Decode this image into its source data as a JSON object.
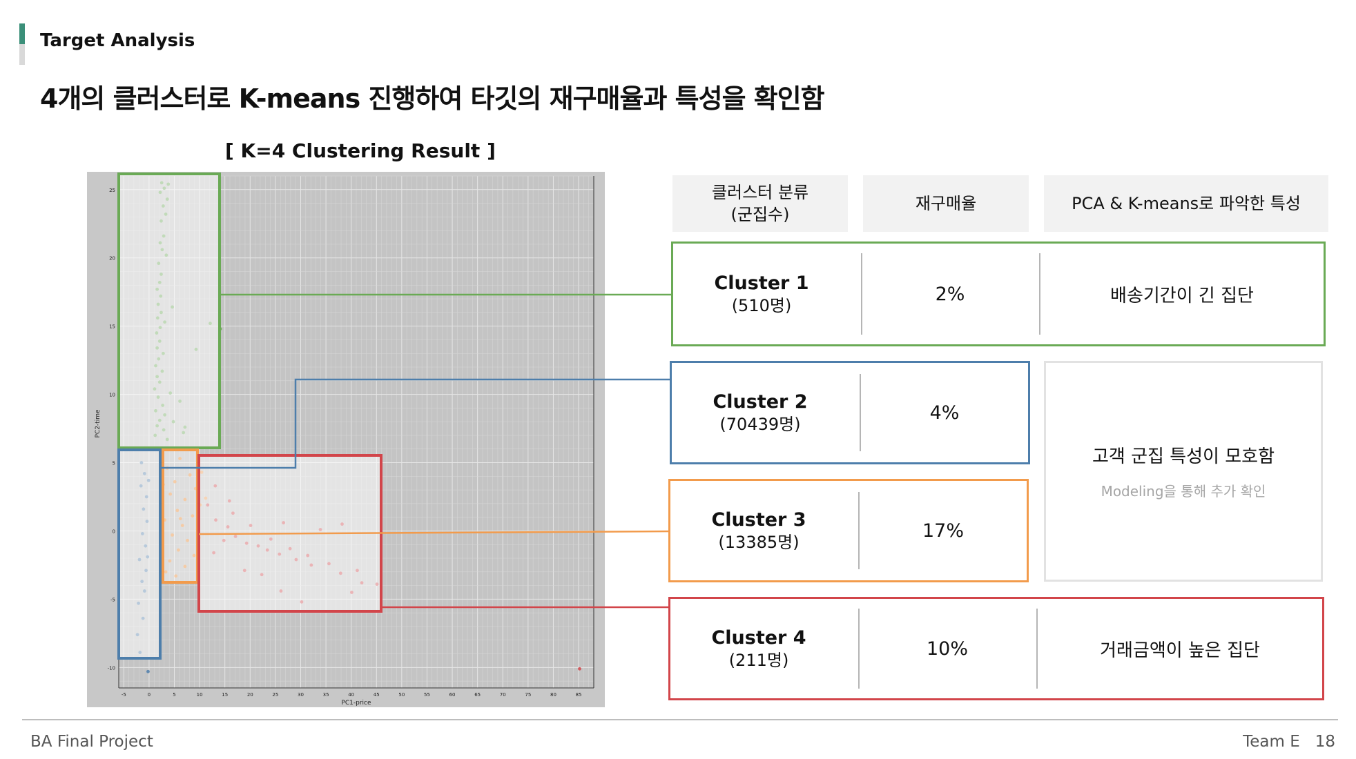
{
  "section_title": "Target Analysis",
  "headline": "4개의 클러스터로 K-means 진행하여 타깃의 재구매율과 특성을 확인함",
  "chart_title": "[ K=4 Clustering Result ]",
  "table": {
    "headers": [
      "클러스터 분류\n(군집수)",
      "재구매율",
      "PCA & K-means로 파악한 특성"
    ],
    "rows": [
      {
        "name": "Cluster 1",
        "count": "(510명)",
        "rate": "2%",
        "trait": "배송기간이 긴 집단",
        "color": "#6aaa55"
      },
      {
        "name": "Cluster 2",
        "count": "(70439명)",
        "rate": "4%",
        "color": "#4d7eab"
      },
      {
        "name": "Cluster 3",
        "count": "(13385명)",
        "rate": "17%",
        "color": "#f29b4c"
      },
      {
        "name": "Cluster 4",
        "count": "(211명)",
        "rate": "10%",
        "trait": "거래금액이 높은 집단",
        "color": "#d2454a"
      }
    ],
    "merged_trait": "고객 군집 특성이 모호함",
    "merged_subtext": "Modeling을 통해 추가 확인"
  },
  "chart_data": {
    "type": "scatter",
    "title": "",
    "xlabel": "PC1-price",
    "ylabel": "PC2-time",
    "xlim": [
      -6,
      88
    ],
    "ylim": [
      -11.5,
      26
    ],
    "x_ticks": [
      -5,
      0,
      5,
      10,
      15,
      20,
      25,
      30,
      35,
      40,
      45,
      50,
      55,
      60,
      65,
      70,
      75,
      80,
      85
    ],
    "y_ticks": [
      -10,
      -5,
      0,
      5,
      10,
      15,
      20,
      25
    ],
    "grid": true,
    "series": [
      {
        "color": "#6aaa55",
        "points": [
          [
            2.5,
            25.5
          ],
          [
            3.8,
            25.4
          ],
          [
            3,
            25.1
          ],
          [
            2.2,
            24.8
          ],
          [
            3.6,
            24.3
          ],
          [
            2.8,
            23.8
          ],
          [
            3.3,
            23.2
          ],
          [
            2.4,
            22.7
          ],
          [
            2.9,
            21.6
          ],
          [
            2.2,
            21.1
          ],
          [
            2.6,
            20.6
          ],
          [
            3.4,
            20.2
          ],
          [
            1.9,
            19.6
          ],
          [
            2.4,
            18.8
          ],
          [
            2.1,
            18.2
          ],
          [
            1.6,
            17.7
          ],
          [
            2.3,
            17.2
          ],
          [
            1.8,
            16.6
          ],
          [
            4.6,
            16.4
          ],
          [
            2.4,
            16
          ],
          [
            1.7,
            15.6
          ],
          [
            3.1,
            15.3
          ],
          [
            2.2,
            14.9
          ],
          [
            1.5,
            14.5
          ],
          [
            12.1,
            15.2
          ],
          [
            14.1,
            14.8
          ],
          [
            9.3,
            13.3
          ],
          [
            2.1,
            13.9
          ],
          [
            1.6,
            13.4
          ],
          [
            2.8,
            13
          ],
          [
            1.9,
            12.6
          ],
          [
            1.3,
            12.1
          ],
          [
            2.6,
            11.7
          ],
          [
            1.6,
            11.3
          ],
          [
            2.1,
            10.9
          ],
          [
            1.1,
            10.4
          ],
          [
            4.2,
            10.1
          ],
          [
            1.8,
            9.8
          ],
          [
            6.1,
            9.5
          ],
          [
            2.7,
            9.2
          ],
          [
            1.3,
            8.8
          ],
          [
            3.1,
            8.5
          ],
          [
            2.1,
            8.1
          ],
          [
            4.8,
            8
          ],
          [
            1.6,
            7.7
          ],
          [
            2.9,
            7.4
          ],
          [
            6.8,
            7.2
          ],
          [
            1.2,
            7
          ],
          [
            3.6,
            6.7
          ],
          [
            7.1,
            7.6
          ]
        ]
      },
      {
        "color": "#4d7eab",
        "points": [
          [
            -1.5,
            5
          ],
          [
            -0.9,
            4.2
          ],
          [
            -1.6,
            3.3
          ],
          [
            -0.5,
            2.5
          ],
          [
            -1.1,
            1.6
          ],
          [
            -0.4,
            0.7
          ],
          [
            -1.3,
            -0.2
          ],
          [
            -0.7,
            -1.1
          ],
          [
            -1.9,
            -2.1
          ],
          [
            -0.6,
            -2.9
          ],
          [
            -1.4,
            -3.7
          ],
          [
            -0.9,
            -4.4
          ],
          [
            -2.1,
            -5.3
          ],
          [
            -1.2,
            -6.4
          ],
          [
            -2.3,
            -7.6
          ],
          [
            -1.8,
            -8.9
          ],
          [
            -0.2,
            -10.3
          ],
          [
            -0.1,
            3.7
          ],
          [
            -0.3,
            -1.9
          ]
        ]
      },
      {
        "color": "#f29b4c",
        "points": [
          [
            4.8,
            6
          ],
          [
            6.1,
            5.3
          ],
          [
            3.6,
            4.6
          ],
          [
            8.1,
            4.1
          ],
          [
            5.1,
            3.6
          ],
          [
            9.2,
            3.1
          ],
          [
            4.2,
            2.7
          ],
          [
            7.1,
            2.3
          ],
          [
            10.1,
            1.9
          ],
          [
            5.6,
            1.5
          ],
          [
            8.6,
            1.1
          ],
          [
            3.1,
            0.8
          ],
          [
            6.6,
            0.4
          ],
          [
            9.6,
            0.1
          ],
          [
            4.6,
            -0.3
          ],
          [
            7.6,
            -0.7
          ],
          [
            2.6,
            -1
          ],
          [
            5.8,
            -1.4
          ],
          [
            8.9,
            -1.8
          ],
          [
            4.1,
            -2.2
          ],
          [
            7.1,
            -2.6
          ],
          [
            3.3,
            -3
          ],
          [
            6.2,
            0.9
          ],
          [
            9.9,
            -0.5
          ],
          [
            11.2,
            2.4
          ],
          [
            2.8,
            3.4
          ],
          [
            10.4,
            4.3
          ],
          [
            5.3,
            -3.3
          ]
        ]
      },
      {
        "color": "#d2454a",
        "points": [
          [
            13.2,
            0.8
          ],
          [
            15.6,
            0.3
          ],
          [
            17.1,
            -0.4
          ],
          [
            19.3,
            -0.9
          ],
          [
            21.6,
            -1.1
          ],
          [
            23.4,
            -1.4
          ],
          [
            24.1,
            -0.6
          ],
          [
            25.8,
            -1.7
          ],
          [
            27.9,
            -1.3
          ],
          [
            29.1,
            -2.1
          ],
          [
            31.4,
            -1.8
          ],
          [
            32.1,
            -2.5
          ],
          [
            35.6,
            -2.4
          ],
          [
            37.9,
            -3.1
          ],
          [
            41.2,
            -2.9
          ],
          [
            42.1,
            -3.8
          ],
          [
            45.1,
            -3.9
          ],
          [
            40.1,
            -4.5
          ],
          [
            30.2,
            -5.2
          ],
          [
            26.1,
            -4.4
          ],
          [
            22.3,
            -3.2
          ],
          [
            18.9,
            -2.9
          ],
          [
            11.6,
            1.9
          ],
          [
            13.1,
            3.3
          ],
          [
            15.9,
            2.2
          ],
          [
            12.8,
            -1.6
          ],
          [
            14.8,
            -0.7
          ],
          [
            16.6,
            1.3
          ],
          [
            20.1,
            0.4
          ],
          [
            26.6,
            0.6
          ],
          [
            33.9,
            0.1
          ],
          [
            38.2,
            0.5
          ],
          [
            85.2,
            -10.1
          ]
        ]
      }
    ]
  },
  "footer": {
    "left": "BA Final Project",
    "team": "Team E",
    "page": "18"
  }
}
